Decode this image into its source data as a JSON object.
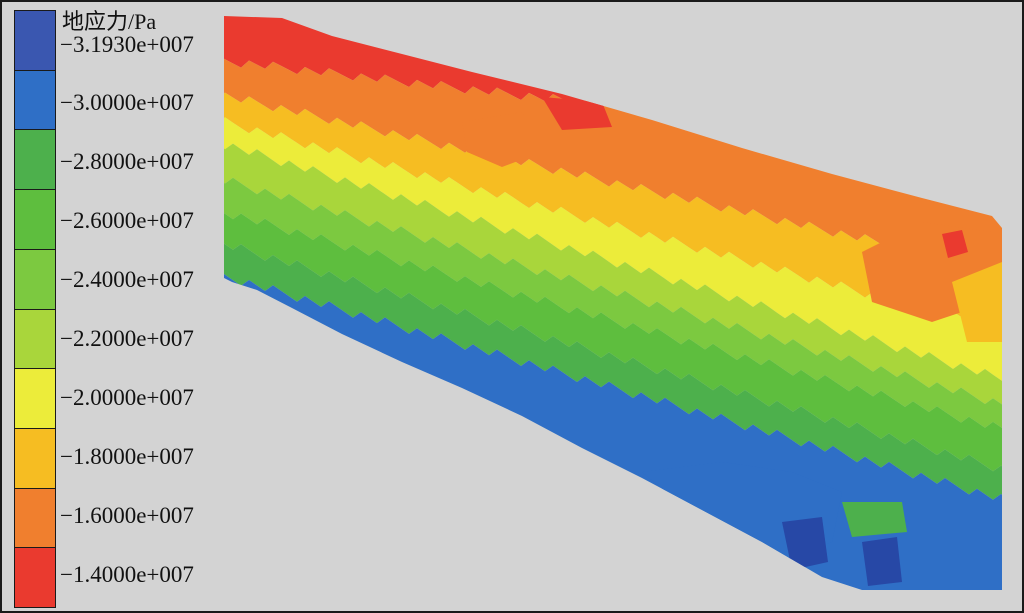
{
  "legend": {
    "title": "地应力/Pa",
    "labels": [
      "−3.1930e+007",
      "−3.0000e+007",
      "−2.8000e+007",
      "−2.6000e+007",
      "−2.4000e+007",
      "−2.2000e+007",
      "−2.0000e+007",
      "−1.8000e+007",
      "−1.6000e+007",
      "−1.4000e+007"
    ],
    "colors": [
      "#3a57b0",
      "#2f6fc6",
      "#4db04c",
      "#5ebe3e",
      "#7cc940",
      "#a9d63b",
      "#ecec3a",
      "#f6bd22",
      "#f07f2e",
      "#ea3a2f"
    ]
  },
  "contour": {
    "background": "#d3d3d3",
    "band_colors": [
      "#ea3a2f",
      "#f07f2e",
      "#f6bd22",
      "#ecec3a",
      "#a9d63b",
      "#7cc940",
      "#5ebe3e",
      "#4db04c",
      "#2f6fc6"
    ]
  }
}
